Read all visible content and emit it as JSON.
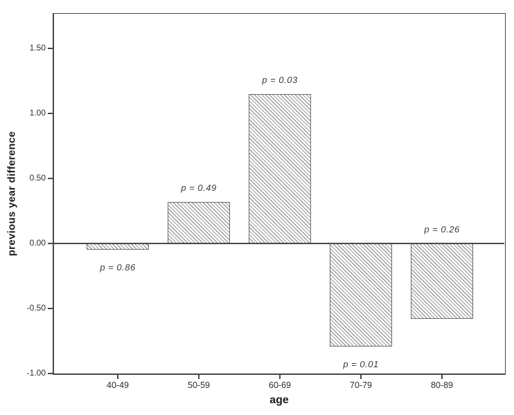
{
  "chart_data": {
    "type": "bar",
    "title": "",
    "xlabel": "age",
    "ylabel": "previous year difference",
    "categories": [
      "40-49",
      "50-59",
      "60-69",
      "70-79",
      "80-89"
    ],
    "values": [
      -0.05,
      0.32,
      1.15,
      -0.79,
      -0.58
    ],
    "annotations": [
      "p = 0.86",
      "p = 0.49",
      "p = 0.03",
      "p = 0.01",
      "p = 0.26"
    ],
    "annotation_placement": [
      "below-bar",
      "above-bar",
      "above-bar",
      "below-bar",
      "above-axis"
    ],
    "y_ticks": [
      "1.50",
      "1.00",
      "0.50",
      "0.00",
      "-0.50",
      "-1.00"
    ],
    "y_tick_values": [
      1.5,
      1.0,
      0.5,
      0.0,
      -0.5,
      -1.0
    ],
    "ylim": [
      -1.0,
      1.77
    ],
    "grid": false,
    "legend": "none",
    "bar_style": "diagonal-hatch",
    "colors": {
      "background": "#ffffff",
      "axis": "#474747",
      "bar_border": "#6b6b6b",
      "hatch_line": "#9c9c9c",
      "text": "#2b2b2b"
    }
  }
}
